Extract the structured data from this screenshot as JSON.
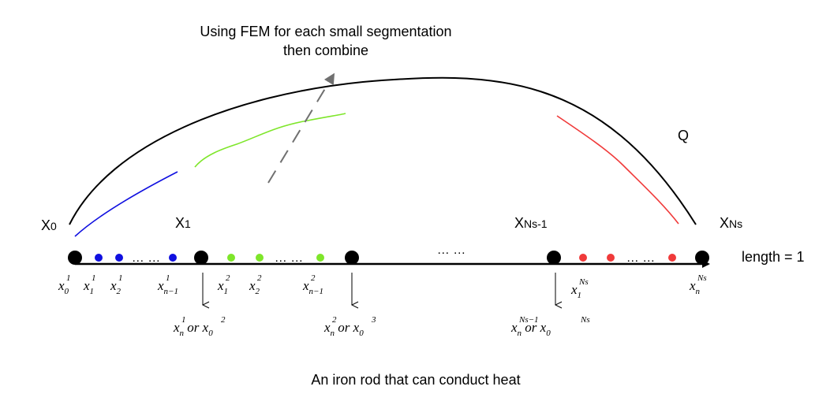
{
  "annotation": {
    "line1": "Using FEM for each small segmentation",
    "line2": "then combine"
  },
  "q_label": "Q",
  "length_label": "length = 1",
  "caption": "An iron rod that can conduct heat",
  "middle_ellipsis": "… …",
  "segment_ellipsis": "… …",
  "big_nodes": {
    "x0": {
      "base": "X",
      "sub": "0"
    },
    "x1": {
      "base": "X",
      "sub": "1"
    },
    "xns1": {
      "base": "X",
      "sub": "Ns-1"
    },
    "xns": {
      "base": "X",
      "sub": "Ns"
    }
  },
  "node_labels": [
    {
      "base": "x",
      "sub": "0",
      "sup": "1"
    },
    {
      "base": "x",
      "sub": "1",
      "sup": "1"
    },
    {
      "base": "x",
      "sub": "2",
      "sup": "1"
    },
    {
      "base": "x",
      "sub": "n−1",
      "sup": "1"
    },
    {
      "base": "x",
      "sub": "1",
      "sup": "2"
    },
    {
      "base": "x",
      "sub": "2",
      "sup": "2"
    },
    {
      "base": "x",
      "sub": "n−1",
      "sup": "2"
    },
    {
      "base": "x",
      "sub": "1",
      "sup": "Ns"
    },
    {
      "base": "x",
      "sub": "n",
      "sup": "Ns"
    }
  ],
  "joint_labels": [
    {
      "a_sub": "n",
      "a_sup": "1",
      "or": "or",
      "b_sub": "0",
      "b_sup": "2"
    },
    {
      "a_sub": "n",
      "a_sup": "2",
      "or": "or",
      "b_sub": "0",
      "b_sup": "3"
    },
    {
      "a_sub": "n",
      "a_sup": "Ns−1",
      "or": "or",
      "b_sub": "0",
      "b_sup": "Ns"
    }
  ],
  "colors": {
    "segment1": "#1010e0",
    "segment2": "#7ee62a",
    "segmentN": "#f03a3a",
    "axis": "#000000",
    "dashed_arrow": "#707070"
  }
}
